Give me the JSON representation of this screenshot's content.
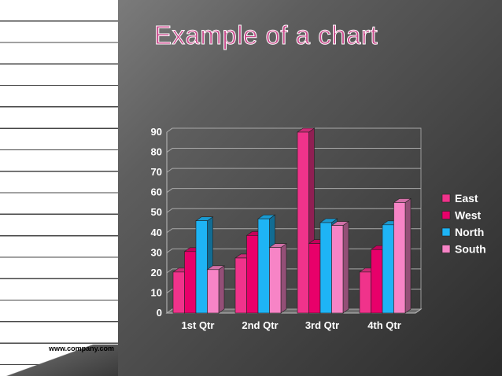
{
  "slide": {
    "title": "Example of a chart",
    "footer": "www.company.com"
  },
  "colors": {
    "East": "#f0338b",
    "West": "#e8006a",
    "North": "#1eb4f5",
    "South": "#f784c6"
  },
  "chart_data": {
    "type": "bar",
    "title": "",
    "xlabel": "",
    "ylabel": "",
    "categories": [
      "1st Qtr",
      "2nd Qtr",
      "3rd Qtr",
      "4th Qtr"
    ],
    "ylim": [
      0,
      90
    ],
    "yticks": [
      0,
      10,
      20,
      30,
      40,
      50,
      60,
      70,
      80,
      90
    ],
    "grid": true,
    "legend_position": "right",
    "series": [
      {
        "name": "East",
        "values": [
          20.4,
          27.4,
          90,
          20.4
        ]
      },
      {
        "name": "West",
        "values": [
          30.6,
          38.6,
          34.6,
          31.6
        ]
      },
      {
        "name": "North",
        "values": [
          45.9,
          46.9,
          45,
          43.9
        ]
      },
      {
        "name": "South",
        "values": [
          21.6,
          32.6,
          43.6,
          55
        ]
      }
    ]
  }
}
